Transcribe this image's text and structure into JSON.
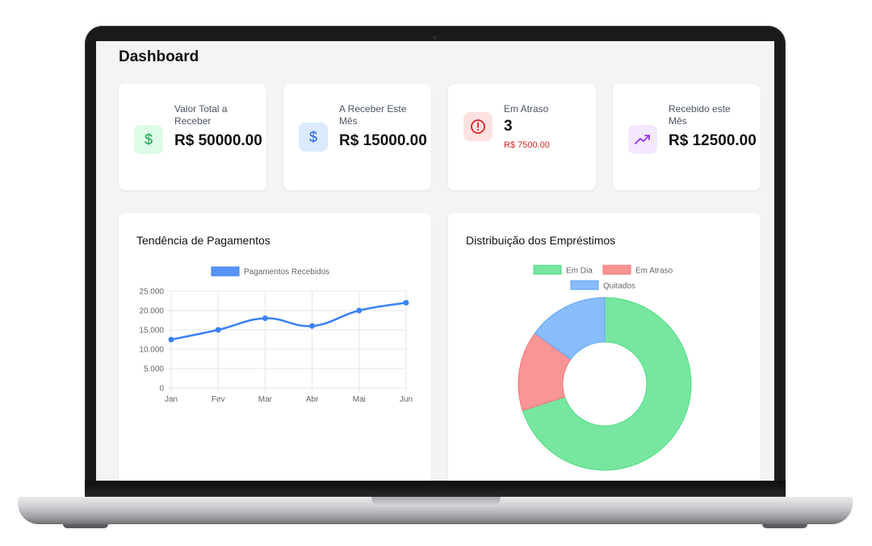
{
  "dashboard": {
    "title": "Dashboard"
  },
  "stats": [
    {
      "label": "Valor Total a Receber",
      "value": "R$ 50000.00",
      "icon": "dollar-icon",
      "icon_color": "#16a34a",
      "icon_bg": "#dcfce7"
    },
    {
      "label": "A Receber Este Mês",
      "value": "R$ 15000.00",
      "icon": "dollar-icon",
      "icon_color": "#2563eb",
      "icon_bg": "#dbeafe"
    },
    {
      "label": "Em Atraso",
      "value": "3",
      "sub": "R$ 7500.00",
      "icon": "alert-circle-icon",
      "icon_color": "#dc2626",
      "icon_bg": "#fee2e2"
    },
    {
      "label": "Recebido este Mês",
      "value": "R$ 12500.00",
      "icon": "trending-up-icon",
      "icon_color": "#9333ea",
      "icon_bg": "#f3e8ff"
    }
  ],
  "charts": {
    "trend_title": "Tendência de Pagamentos",
    "distribution_title": "Distribuição dos Empréstimos"
  },
  "chart_data": [
    {
      "type": "line",
      "title": "",
      "categories": [
        "Jan",
        "Fev",
        "Mar",
        "Abr",
        "Mai",
        "Jun"
      ],
      "series": [
        {
          "name": "Pagamentos Recebidos",
          "values": [
            12500,
            15000,
            18000,
            16000,
            20000,
            22000
          ],
          "color": "#3b82f6"
        }
      ],
      "yticks": [
        "0",
        "5.000",
        "10.000",
        "15.000",
        "20.000",
        "25.000"
      ],
      "ylim": [
        0,
        25000
      ],
      "grid": true,
      "legend": "top"
    },
    {
      "type": "pie",
      "variant": "doughnut",
      "title": "",
      "labels": [
        "Em Dia",
        "Em Atraso",
        "Quitados"
      ],
      "values": [
        70,
        15,
        15
      ],
      "colors": [
        "#4ade80",
        "#f87171",
        "#60a5fa"
      ],
      "legend": "top"
    }
  ]
}
